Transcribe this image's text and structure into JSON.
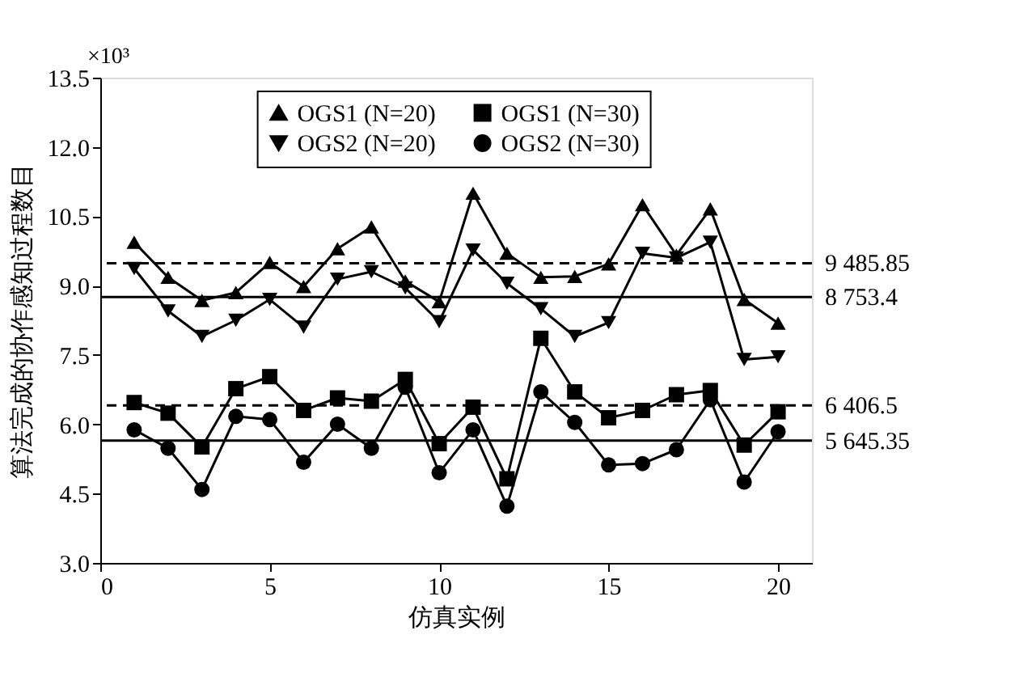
{
  "chart_data": {
    "type": "line",
    "xlabel": "仿真实例",
    "ylabel": "算法完成的协作感知过程数目",
    "annotations": [
      "×10³"
    ],
    "x": [
      1,
      2,
      3,
      4,
      5,
      6,
      7,
      8,
      9,
      10,
      11,
      12,
      13,
      14,
      15,
      16,
      17,
      18,
      19,
      20
    ],
    "series": [
      {
        "name": "OGS1 (N=20)",
        "color": "#000000",
        "marker": "triangle",
        "values": [
          9.94,
          9.18,
          8.68,
          8.85,
          9.5,
          8.98,
          9.8,
          10.27,
          9.1,
          8.65,
          11.0,
          9.7,
          9.18,
          9.2,
          9.47,
          10.75,
          9.66,
          10.66,
          8.7,
          8.19
        ]
      },
      {
        "name": "OGS2 (N=20)",
        "color": "#000000",
        "marker": "triangle-down",
        "values": [
          9.37,
          8.45,
          7.9,
          8.25,
          8.7,
          8.1,
          9.14,
          9.3,
          8.95,
          8.22,
          9.77,
          9.05,
          8.5,
          7.9,
          8.2,
          9.7,
          9.6,
          9.94,
          7.4,
          7.46
        ]
      },
      {
        "name": "OGS1 (N=30)",
        "color": "#000000",
        "marker": "square",
        "values": [
          6.47,
          6.24,
          5.51,
          6.77,
          7.03,
          6.3,
          6.57,
          6.5,
          6.97,
          5.58,
          6.37,
          4.82,
          7.86,
          6.7,
          6.14,
          6.3,
          6.64,
          6.73,
          5.55,
          6.27
        ]
      },
      {
        "name": "OGS2 (N=30)",
        "color": "#000000",
        "marker": "circle",
        "values": [
          5.88,
          5.48,
          4.59,
          6.17,
          6.1,
          5.18,
          6.0,
          5.48,
          6.8,
          4.95,
          5.88,
          4.23,
          6.7,
          6.04,
          5.12,
          5.15,
          5.45,
          6.53,
          4.75,
          5.84
        ]
      }
    ],
    "ref_lines": [
      {
        "axis": "y",
        "value": 9.48585,
        "label": "9 485.85",
        "line_style": "dashed",
        "color": "#000000"
      },
      {
        "axis": "y",
        "value": 8.7534,
        "label": "8 753.4",
        "line_style": "solid",
        "color": "#000000"
      },
      {
        "axis": "y",
        "value": 6.4065,
        "label": "6 406.5",
        "line_style": "dashed",
        "color": "#000000"
      },
      {
        "axis": "y",
        "value": 5.64535,
        "label": "5 645.35",
        "line_style": "solid",
        "color": "#000000"
      }
    ],
    "xlim": [
      0,
      21
    ],
    "xticks": [
      0,
      5,
      10,
      15,
      20
    ],
    "ylim": [
      3.0,
      13.5
    ],
    "yticks": [
      {
        "value": 3,
        "label": "3.0"
      },
      {
        "value": 4.5,
        "label": "4.5"
      },
      {
        "value": 6,
        "label": "6.0"
      },
      {
        "value": 7.5,
        "label": "7.5"
      },
      {
        "value": 9,
        "label": "9.0"
      },
      {
        "value": 10.5,
        "label": "10.5"
      },
      {
        "value": 12,
        "label": "12.0"
      },
      {
        "value": 13.5,
        "label": "13.5"
      }
    ],
    "grid": false,
    "legend": "top",
    "line_style": "solid"
  }
}
